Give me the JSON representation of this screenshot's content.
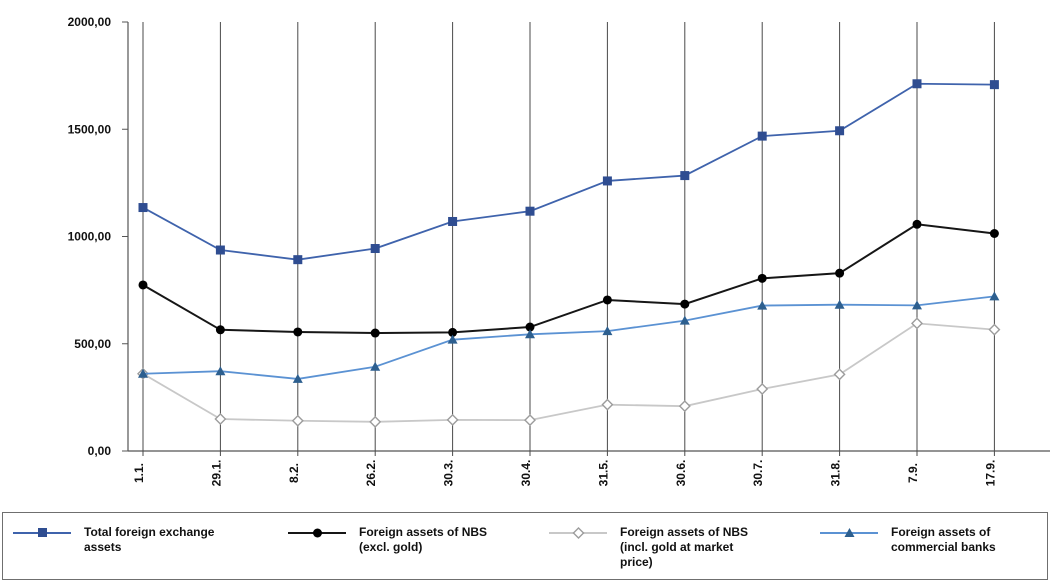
{
  "chart_data": {
    "type": "line",
    "categories": [
      "1.1.",
      "29.1.",
      "8.2.",
      "26.2.",
      "30.3.",
      "30.4.",
      "31.5.",
      "30.6.",
      "30.7.",
      "31.8.",
      "7.9.",
      "17.9."
    ],
    "y_tick_labels": [
      "0,00",
      "500,00",
      "1000,00",
      "1500,00",
      "2000,00"
    ],
    "ylim": [
      0,
      2000
    ],
    "grid": {
      "vertical": true,
      "horizontal": false
    },
    "legend_position": "bottom",
    "series": [
      {
        "name": "Total foreign exchange\nassets",
        "color": "#3f63ac",
        "marker": "square",
        "values": [
          1135,
          937,
          892,
          944,
          1070,
          1118,
          1259,
          1284,
          1468,
          1493,
          1712,
          1708
        ]
      },
      {
        "name": "Foreign assets of NBS\n(excl. gold)",
        "color": "#161616",
        "marker": "circle",
        "values": [
          774,
          565,
          555,
          550,
          553,
          578,
          704,
          685,
          805,
          829,
          1057,
          1014
        ]
      },
      {
        "name": "Foreign assets of NBS\n(incl. gold at market\nprice)",
        "color": "#c8c8c8",
        "marker": "diamond",
        "values": [
          360,
          149,
          141,
          136,
          145,
          144,
          216,
          209,
          289,
          357,
          595,
          566
        ]
      },
      {
        "name": "Foreign assets of\ncommercial banks",
        "color": "#5b92d3",
        "marker": "triangle",
        "values": [
          360,
          372,
          336,
          393,
          519,
          544,
          559,
          608,
          678,
          682,
          679,
          721
        ]
      }
    ]
  }
}
